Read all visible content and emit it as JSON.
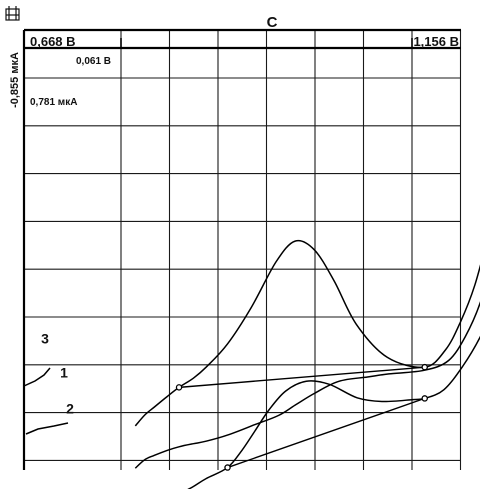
{
  "chart_data": {
    "type": "line",
    "title": "C",
    "x_start_label": "0,668 В",
    "x_end_label": "1,156 В",
    "x_step_label": "0,061 В",
    "y_top_label": "-0,855 мкА",
    "y_step_label": "0,781 мкА",
    "xlim": [
      0.668,
      1.156
    ],
    "ylim": [
      -0.855,
      -7.883
    ],
    "grid": true,
    "series": [
      {
        "name": "3",
        "x": [
          0.686,
          0.698,
          0.71,
          0.726,
          0.741,
          0.759,
          0.775,
          0.802,
          0.832,
          0.863,
          0.887,
          0.911,
          0.936,
          0.964,
          1.003,
          1.05,
          1.076,
          1.095,
          1.113,
          1.13,
          1.146
        ],
        "y": [
          -6.54,
          -6.36,
          -6.23,
          -6.06,
          -5.91,
          -5.76,
          -5.58,
          -5.2,
          -4.6,
          -3.86,
          -3.52,
          -3.66,
          -4.17,
          -4.88,
          -5.42,
          -5.58,
          -5.3,
          -4.84,
          -4.24,
          -3.43,
          -2.67
        ]
      },
      {
        "name": "1",
        "x": [
          0.686,
          0.698,
          0.71,
          0.726,
          0.741,
          0.759,
          0.775,
          0.802,
          0.836,
          0.866,
          0.887,
          0.911,
          0.942,
          0.978,
          1.005,
          1.05,
          1.08,
          1.101,
          1.12,
          1.138,
          1.152
        ],
        "y": [
          -7.23,
          -7.09,
          -7.02,
          -6.94,
          -6.88,
          -6.83,
          -6.79,
          -6.69,
          -6.52,
          -6.37,
          -6.2,
          -6.01,
          -5.81,
          -5.74,
          -5.69,
          -5.63,
          -5.47,
          -5.08,
          -4.52,
          -3.69,
          -2.88
        ]
      },
      {
        "name": "2",
        "x": [
          0.686,
          0.698,
          0.71,
          0.726,
          0.741,
          0.759,
          0.775,
          0.802,
          0.82,
          0.836,
          0.854,
          0.875,
          0.901,
          0.93,
          0.965,
          0.997,
          1.035,
          1.05,
          1.074,
          1.098,
          1.12,
          1.138,
          1.152
        ],
        "y": [
          -7.95,
          -7.86,
          -7.83,
          -7.8,
          -7.66,
          -7.53,
          -7.4,
          -7.22,
          -6.94,
          -6.63,
          -6.28,
          -5.97,
          -5.81,
          -5.86,
          -6.08,
          -6.14,
          -6.11,
          -6.09,
          -5.95,
          -5.56,
          -5.08,
          -4.55,
          -4.0
        ]
      }
    ],
    "baselines": [
      {
        "x": [
          0.741,
          1.05
        ],
        "y": [
          -5.91,
          -5.58
        ]
      },
      {
        "x": [
          0.802,
          1.05
        ],
        "y": [
          -7.22,
          -6.09
        ]
      }
    ]
  }
}
